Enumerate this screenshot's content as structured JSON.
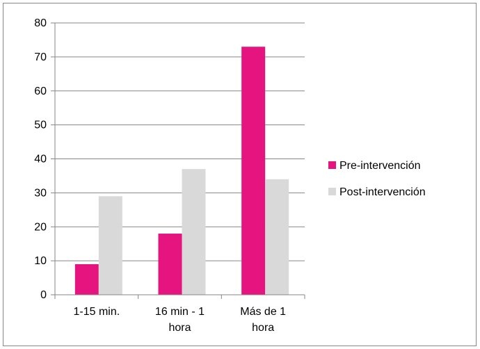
{
  "chart_data": {
    "type": "bar",
    "categories": [
      [
        "1-15 min."
      ],
      [
        "16 min - 1",
        "hora"
      ],
      [
        "Más de 1",
        "hora"
      ]
    ],
    "series": [
      {
        "name": "Pre-intervención",
        "values": [
          9,
          18,
          73
        ],
        "color": "#e5147f"
      },
      {
        "name": "Post-intervención",
        "values": [
          29,
          37,
          34
        ],
        "color": "#d9d9d9"
      }
    ],
    "yticks": [
      0,
      10,
      20,
      30,
      40,
      50,
      60,
      70,
      80
    ],
    "ylim": [
      0,
      80
    ],
    "title": "",
    "xlabel": "",
    "ylabel": "",
    "grid": true,
    "legend_position": "right",
    "colors": {
      "gridline": "#868686",
      "axis": "#868686",
      "frame": "#868686"
    }
  }
}
